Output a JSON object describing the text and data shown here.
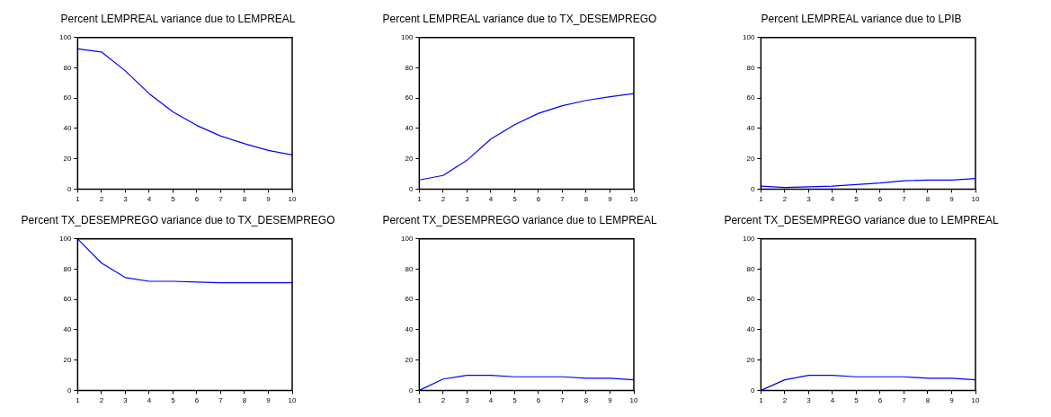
{
  "chart_data": [
    {
      "type": "line",
      "title": "Percent LEMPREAL variance due to LEMPREAL",
      "x": [
        1,
        2,
        3,
        4,
        5,
        6,
        7,
        8,
        9,
        10
      ],
      "values": [
        92.5,
        90.5,
        78,
        63,
        51,
        42,
        35,
        30,
        25.5,
        22.5
      ],
      "color": "#0000ff",
      "xlim": [
        1,
        10
      ],
      "xticks": [
        1,
        2,
        3,
        4,
        5,
        6,
        7,
        8,
        9,
        10
      ],
      "ylim": [
        0,
        100
      ],
      "yticks": [
        0,
        20,
        40,
        60,
        80,
        100
      ],
      "grid": false
    },
    {
      "type": "line",
      "title": "Percent LEMPREAL variance due to TX_DESEMPREGO",
      "x": [
        1,
        2,
        3,
        4,
        5,
        6,
        7,
        8,
        9,
        10
      ],
      "values": [
        6,
        9,
        19,
        33,
        42.5,
        50,
        55,
        58.5,
        61,
        63
      ],
      "color": "#0000ff",
      "xlim": [
        1,
        10
      ],
      "xticks": [
        1,
        2,
        3,
        4,
        5,
        6,
        7,
        8,
        9,
        10
      ],
      "ylim": [
        0,
        100
      ],
      "yticks": [
        0,
        20,
        40,
        60,
        80,
        100
      ],
      "grid": false
    },
    {
      "type": "line",
      "title": "Percent LEMPREAL variance due to LPIB",
      "x": [
        1,
        2,
        3,
        4,
        5,
        6,
        7,
        8,
        9,
        10
      ],
      "values": [
        2,
        1,
        1.5,
        2,
        3,
        4,
        5.5,
        6,
        6,
        7
      ],
      "color": "#0000ff",
      "xlim": [
        1,
        10
      ],
      "xticks": [
        1,
        2,
        3,
        4,
        5,
        6,
        7,
        8,
        9,
        10
      ],
      "ylim": [
        0,
        100
      ],
      "yticks": [
        0,
        20,
        40,
        60,
        80,
        100
      ],
      "grid": false
    },
    {
      "type": "line",
      "title": "Percent TX_DESEMPREGO variance due to TX_DESEMPREGO",
      "x": [
        1,
        2,
        3,
        4,
        5,
        6,
        7,
        8,
        9,
        10
      ],
      "values": [
        100,
        84,
        74.5,
        72,
        72,
        71.5,
        71,
        71,
        71,
        71
      ],
      "color": "#0000ff",
      "xlim": [
        1,
        10
      ],
      "xticks": [
        1,
        2,
        3,
        4,
        5,
        6,
        7,
        8,
        9,
        10
      ],
      "ylim": [
        0,
        100
      ],
      "yticks": [
        0,
        20,
        40,
        60,
        80,
        100
      ],
      "grid": false
    },
    {
      "type": "line",
      "title": "Percent TX_DESEMPREGO variance due to LEMPREAL",
      "x": [
        1,
        2,
        3,
        4,
        5,
        6,
        7,
        8,
        9,
        10
      ],
      "values": [
        0,
        7.5,
        10,
        10,
        9,
        9,
        9,
        8,
        8,
        7
      ],
      "color": "#0000ff",
      "xlim": [
        1,
        10
      ],
      "xticks": [
        1,
        2,
        3,
        4,
        5,
        6,
        7,
        8,
        9,
        10
      ],
      "ylim": [
        0,
        100
      ],
      "yticks": [
        0,
        20,
        40,
        60,
        80,
        100
      ],
      "grid": false
    },
    {
      "type": "line",
      "title": "Percent TX_DESEMPREGO variance due to LEMPREAL",
      "x": [
        1,
        2,
        3,
        4,
        5,
        6,
        7,
        8,
        9,
        10
      ],
      "values": [
        0,
        7,
        10,
        10,
        9,
        9,
        9,
        8,
        8,
        7
      ],
      "color": "#0000ff",
      "xlim": [
        1,
        10
      ],
      "xticks": [
        1,
        2,
        3,
        4,
        5,
        6,
        7,
        8,
        9,
        10
      ],
      "ylim": [
        0,
        100
      ],
      "yticks": [
        0,
        20,
        40,
        60,
        80,
        100
      ],
      "grid": false
    }
  ]
}
